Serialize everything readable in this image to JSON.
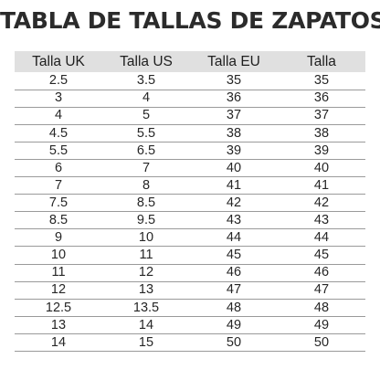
{
  "title": "TABLA DE TALLAS DE ZAPATOS",
  "colors": {
    "header_background": "#e0e0e0",
    "row_divider": "#9a9a9a",
    "text": "#262626"
  },
  "table": {
    "columns": [
      "Talla UK",
      "Talla US",
      "Talla EU",
      "Talla"
    ],
    "rows": [
      [
        "2.5",
        "3.5",
        "35",
        "35"
      ],
      [
        "3",
        "4",
        "36",
        "36"
      ],
      [
        "4",
        "5",
        "37",
        "37"
      ],
      [
        "4.5",
        "5.5",
        "38",
        "38"
      ],
      [
        "5.5",
        "6.5",
        "39",
        "39"
      ],
      [
        "6",
        "7",
        "40",
        "40"
      ],
      [
        "7",
        "8",
        "41",
        "41"
      ],
      [
        "7.5",
        "8.5",
        "42",
        "42"
      ],
      [
        "8.5",
        "9.5",
        "43",
        "43"
      ],
      [
        "9",
        "10",
        "44",
        "44"
      ],
      [
        "10",
        "11",
        "45",
        "45"
      ],
      [
        "11",
        "12",
        "46",
        "46"
      ],
      [
        "12",
        "13",
        "47",
        "47"
      ],
      [
        "12.5",
        "13.5",
        "48",
        "48"
      ],
      [
        "13",
        "14",
        "49",
        "49"
      ],
      [
        "14",
        "15",
        "50",
        "50"
      ]
    ]
  }
}
